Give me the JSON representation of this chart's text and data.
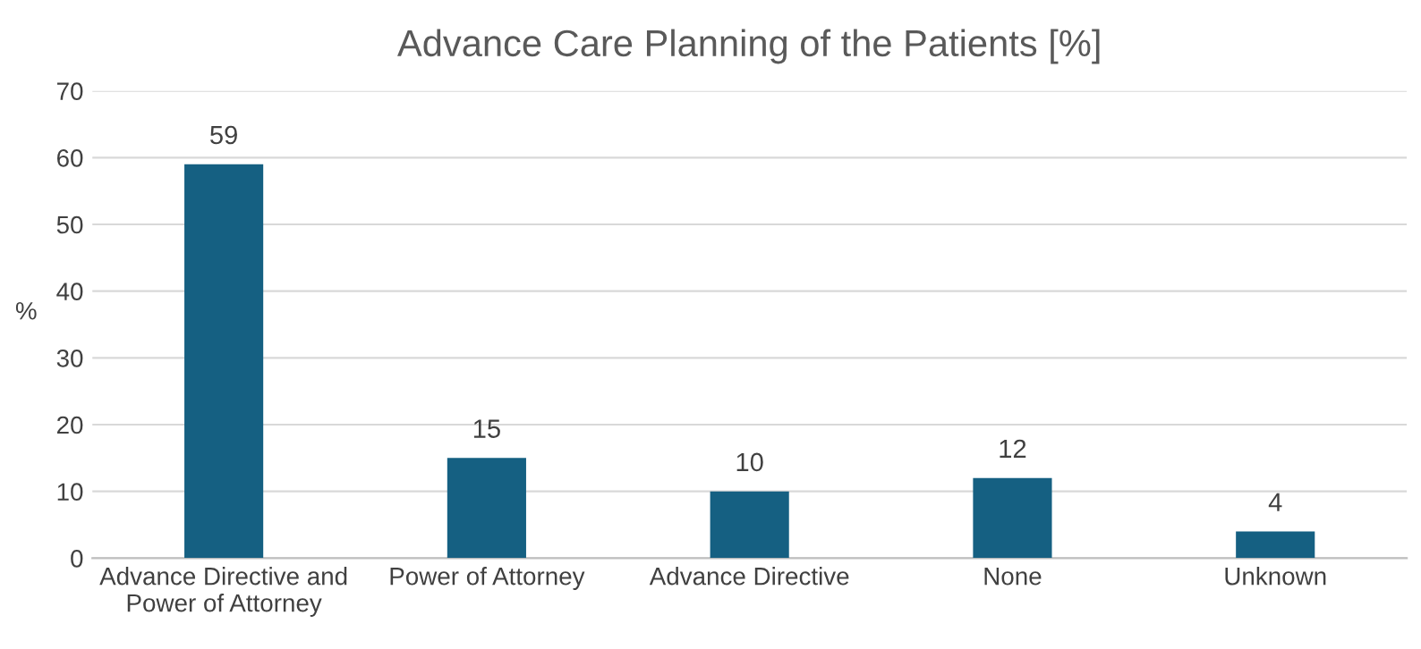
{
  "chart_data": {
    "type": "bar",
    "title": "Advance Care Planning of the Patients [%]",
    "ylabel": "%",
    "categories": [
      "Advance Directive and\nPower of Attorney",
      "Power of Attorney",
      "Advance Directive",
      "None",
      "Unknown"
    ],
    "values": [
      59,
      15,
      10,
      12,
      4
    ],
    "color": "#156082",
    "ylim": [
      0,
      70
    ],
    "yticks": [
      0,
      10,
      20,
      30,
      40,
      50,
      60,
      70
    ],
    "grid": "y",
    "data_labels": true
  }
}
